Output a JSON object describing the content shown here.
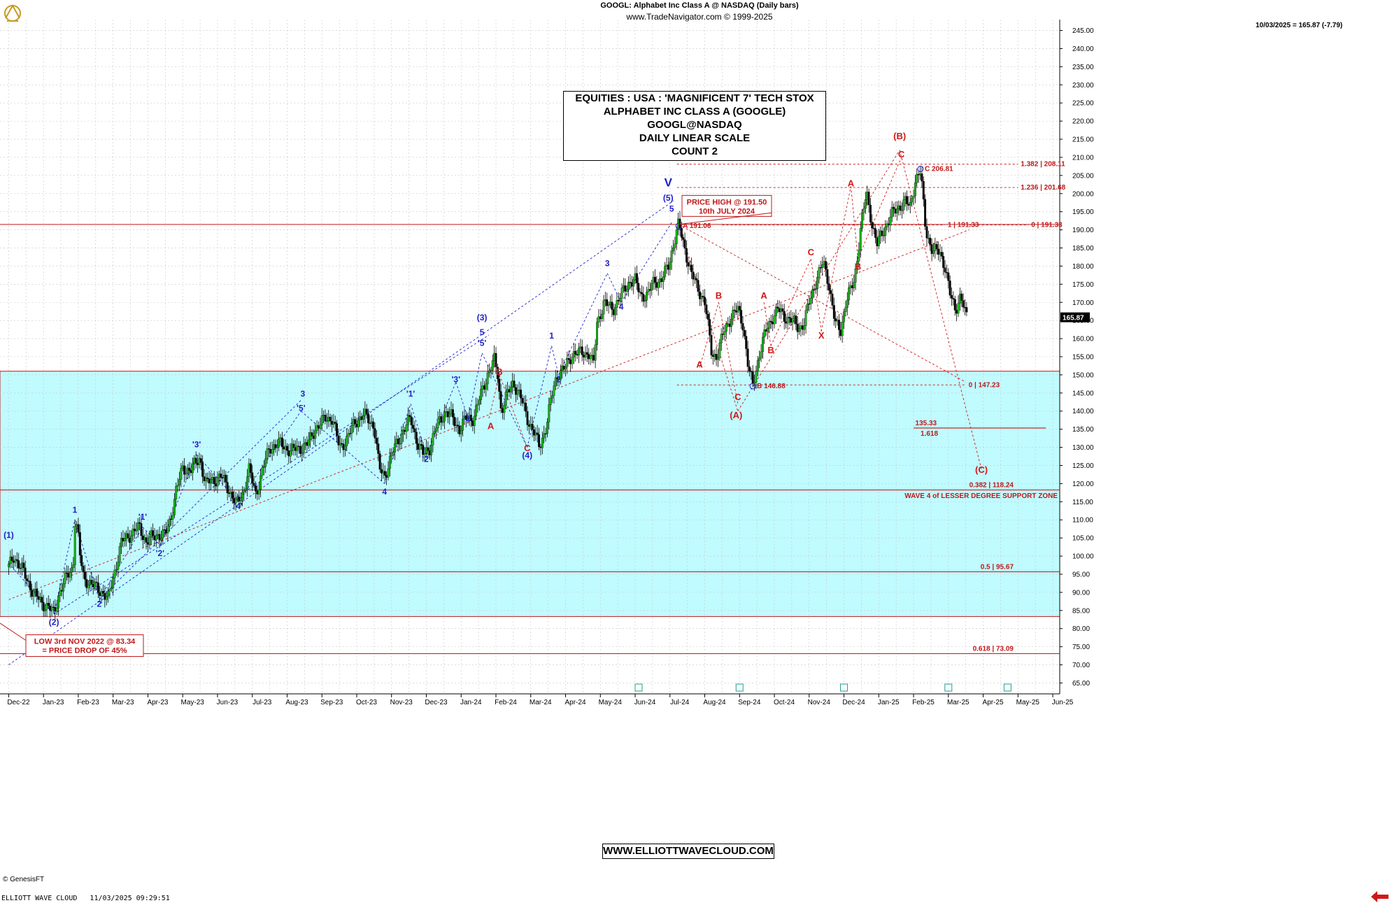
{
  "header": {
    "title": "GOOGL:  Alphabet Inc Class A @ NASDAQ  (Daily bars)",
    "subtitle": "www.TradeNavigator.com © 1999-2025",
    "last_readout": "10/03/2025 = 165.87 (-7.79)"
  },
  "info_box": {
    "lines": [
      "EQUITIES : USA : 'MAGNIFICENT 7' TECH STOX",
      "ALPHABET INC CLASS A (GOOGLE)",
      "GOOGL@NASDAQ",
      "DAILY LINEAR SCALE",
      "COUNT 2"
    ]
  },
  "website_label": "WWW.ELLIOTTWAVECLOUD.COM",
  "footer": "ELLIOTT WAVE CLOUD   11/03/2025 09:29:51",
  "source_mark": "© GenesisFT",
  "colors": {
    "support_zone": "#c0fbff",
    "wave_blue": "#1f1fc8",
    "wave_red": "#d01818",
    "candle_up": "#14b014",
    "candle_down": "#000000",
    "grid": "#c8c8c8"
  },
  "chart_data": {
    "type": "candlestick",
    "y_axis": {
      "min": 62,
      "max": 248,
      "step": 5,
      "position": "right",
      "unit": "price"
    },
    "x_axis": {
      "ticks": [
        "Dec-22",
        "Jan-23",
        "Feb-23",
        "Mar-23",
        "Apr-23",
        "May-23",
        "Jun-23",
        "Jul-23",
        "Aug-23",
        "Sep-23",
        "Oct-23",
        "Nov-23",
        "Dec-23",
        "Jan-24",
        "Feb-24",
        "Mar-24",
        "Apr-24",
        "May-24",
        "Jun-24",
        "Jul-24",
        "Aug-24",
        "Sep-24",
        "Oct-24",
        "Nov-24",
        "Dec-24",
        "Jan-25",
        "Feb-25",
        "Mar-25",
        "Apr-25",
        "May-25",
        "Jun-25"
      ],
      "start_month": 0,
      "end_month": 30
    },
    "grid": true,
    "last_price": "165.87",
    "price_path": [
      [
        0.0,
        97
      ],
      [
        0.15,
        100
      ],
      [
        0.4,
        96
      ],
      [
        0.7,
        90
      ],
      [
        0.95,
        87
      ],
      [
        1.15,
        86
      ],
      [
        1.3,
        84
      ],
      [
        1.45,
        90
      ],
      [
        1.65,
        94
      ],
      [
        1.85,
        97
      ],
      [
        1.9,
        110
      ],
      [
        1.98,
        107
      ],
      [
        2.05,
        100
      ],
      [
        2.15,
        94
      ],
      [
        2.4,
        92
      ],
      [
        2.7,
        90
      ],
      [
        2.85,
        88
      ],
      [
        3.0,
        94
      ],
      [
        3.25,
        104
      ],
      [
        3.5,
        106
      ],
      [
        3.75,
        108
      ],
      [
        3.95,
        104
      ],
      [
        4.1,
        105
      ],
      [
        4.3,
        106
      ],
      [
        4.5,
        106
      ],
      [
        4.65,
        110
      ],
      [
        4.8,
        118
      ],
      [
        5.0,
        124
      ],
      [
        5.25,
        124
      ],
      [
        5.5,
        127
      ],
      [
        5.65,
        120
      ],
      [
        5.9,
        121
      ],
      [
        6.1,
        122
      ],
      [
        6.35,
        118
      ],
      [
        6.55,
        114
      ],
      [
        6.75,
        118
      ],
      [
        6.9,
        124
      ],
      [
        7.1,
        117
      ],
      [
        7.3,
        124
      ],
      [
        7.5,
        130
      ],
      [
        7.8,
        131
      ],
      [
        8.1,
        129
      ],
      [
        8.4,
        130
      ],
      [
        8.6,
        131
      ],
      [
        8.8,
        135
      ],
      [
        9.1,
        138
      ],
      [
        9.3,
        138
      ],
      [
        9.5,
        130
      ],
      [
        9.7,
        132
      ],
      [
        9.95,
        137
      ],
      [
        10.2,
        139
      ],
      [
        10.5,
        136
      ],
      [
        10.65,
        124
      ],
      [
        10.8,
        122
      ],
      [
        11.0,
        128
      ],
      [
        11.3,
        134
      ],
      [
        11.55,
        138
      ],
      [
        11.75,
        131
      ],
      [
        11.9,
        128
      ],
      [
        12.1,
        130
      ],
      [
        12.3,
        136
      ],
      [
        12.55,
        140
      ],
      [
        12.75,
        138
      ],
      [
        12.95,
        135
      ],
      [
        13.15,
        138
      ],
      [
        13.35,
        138
      ],
      [
        13.55,
        144
      ],
      [
        13.75,
        150
      ],
      [
        13.95,
        154
      ],
      [
        14.05,
        150
      ],
      [
        14.15,
        140
      ],
      [
        14.3,
        144
      ],
      [
        14.5,
        148
      ],
      [
        14.7,
        144
      ],
      [
        14.9,
        138
      ],
      [
        15.1,
        134
      ],
      [
        15.25,
        130
      ],
      [
        15.45,
        136
      ],
      [
        15.6,
        144
      ],
      [
        15.75,
        150
      ],
      [
        16.0,
        152
      ],
      [
        16.2,
        156
      ],
      [
        16.45,
        156
      ],
      [
        16.7,
        156
      ],
      [
        16.8,
        152
      ],
      [
        16.9,
        164
      ],
      [
        17.1,
        170
      ],
      [
        17.35,
        168
      ],
      [
        17.6,
        172
      ],
      [
        17.85,
        176
      ],
      [
        18.0,
        176
      ],
      [
        18.15,
        172
      ],
      [
        18.35,
        172
      ],
      [
        18.55,
        176
      ],
      [
        18.75,
        176
      ],
      [
        18.95,
        180
      ],
      [
        19.1,
        186
      ],
      [
        19.25,
        191.5
      ],
      [
        19.4,
        186
      ],
      [
        19.6,
        178
      ],
      [
        19.8,
        174
      ],
      [
        20.0,
        170
      ],
      [
        20.2,
        156
      ],
      [
        20.35,
        155
      ],
      [
        20.55,
        162
      ],
      [
        20.75,
        166
      ],
      [
        20.95,
        168
      ],
      [
        21.1,
        164
      ],
      [
        21.25,
        152
      ],
      [
        21.38,
        147
      ],
      [
        21.55,
        155
      ],
      [
        21.75,
        162
      ],
      [
        21.95,
        166
      ],
      [
        22.1,
        168
      ],
      [
        22.3,
        166
      ],
      [
        22.5,
        165
      ],
      [
        22.7,
        163
      ],
      [
        22.85,
        164
      ],
      [
        23.0,
        170
      ],
      [
        23.2,
        176
      ],
      [
        23.4,
        181
      ],
      [
        23.55,
        176
      ],
      [
        23.75,
        164
      ],
      [
        23.9,
        162
      ],
      [
        24.05,
        170
      ],
      [
        24.3,
        176
      ],
      [
        24.5,
        192
      ],
      [
        24.65,
        200
      ],
      [
        24.8,
        192
      ],
      [
        24.95,
        186
      ],
      [
        25.15,
        190
      ],
      [
        25.35,
        194
      ],
      [
        25.55,
        196
      ],
      [
        25.75,
        198
      ],
      [
        25.9,
        196
      ],
      [
        26.05,
        204
      ],
      [
        26.2,
        206
      ],
      [
        26.35,
        190
      ],
      [
        26.55,
        184
      ],
      [
        26.75,
        184
      ],
      [
        26.9,
        180
      ],
      [
        27.05,
        172
      ],
      [
        27.2,
        168
      ],
      [
        27.35,
        172
      ],
      [
        27.5,
        166
      ]
    ],
    "support_zone": {
      "low": 83.34,
      "high": 151
    },
    "horizontal_lines": [
      {
        "price": 191.5,
        "label": ""
      },
      {
        "price": 118.24,
        "label": "0.382 | 118.24"
      },
      {
        "price": 95.67,
        "label": "0.5 | 95.67"
      },
      {
        "price": 73.09,
        "label": "0.618 | 73.09"
      },
      {
        "price": 135.33,
        "label": "135.33"
      }
    ],
    "fib_levels": [
      {
        "price": 208.11,
        "label": "1.382 | 208.11"
      },
      {
        "price": 201.68,
        "label": "1.236 | 201.68"
      },
      {
        "price": 191.33,
        "label": "1 | 191.33"
      },
      {
        "price": 191.33,
        "label": "0 | 191.33"
      },
      {
        "price": 147.23,
        "label": "0 | 147.23"
      }
    ],
    "annotations": [
      {
        "text": "PRICE HIGH @ 191.50",
        "month": 19.25,
        "price": 191.5,
        "sub": "10th JULY 2024"
      },
      {
        "text": "LOW 3rd NOV 2022 @ 83.34",
        "month": 0.0,
        "price": 83.34,
        "sub": "= PRICE DROP OF 45%"
      },
      {
        "text": "WAVE 4 of LESSER DEGREE SUPPORT ZONE"
      },
      {
        "text": "A 191.06"
      },
      {
        "text": "B 146.88"
      },
      {
        "text": "C 206.81"
      },
      {
        "text": "1.618"
      }
    ],
    "wave_labels_blue": [
      {
        "t": "(1)",
        "m": 0.0,
        "p": 105
      },
      {
        "t": "(2)",
        "m": 1.3,
        "p": 81
      },
      {
        "t": "1",
        "m": 1.9,
        "p": 112
      },
      {
        "t": "2",
        "m": 2.6,
        "p": 86
      },
      {
        "t": "'1'",
        "m": 3.85,
        "p": 110
      },
      {
        "t": "'2'",
        "m": 4.35,
        "p": 100
      },
      {
        "t": "'3'",
        "m": 5.4,
        "p": 130
      },
      {
        "t": "'4'",
        "m": 6.6,
        "p": 113
      },
      {
        "t": "'5'",
        "m": 8.4,
        "p": 140
      },
      {
        "t": "3",
        "m": 8.45,
        "p": 144
      },
      {
        "t": "4",
        "m": 10.8,
        "p": 117
      },
      {
        "t": "'1'",
        "m": 11.55,
        "p": 144
      },
      {
        "t": "'2'",
        "m": 12.0,
        "p": 126
      },
      {
        "t": "'3'",
        "m": 12.85,
        "p": 148
      },
      {
        "t": "'4'",
        "m": 13.2,
        "p": 137
      },
      {
        "t": "'5'",
        "m": 13.6,
        "p": 158
      },
      {
        "t": "5",
        "m": 13.6,
        "p": 161
      },
      {
        "t": "(3)",
        "m": 13.6,
        "p": 165
      },
      {
        "t": "(4)",
        "m": 14.9,
        "p": 127
      },
      {
        "t": "1",
        "m": 15.6,
        "p": 160
      },
      {
        "t": "2",
        "m": 15.8,
        "p": 148
      },
      {
        "t": "3",
        "m": 17.2,
        "p": 180
      },
      {
        "t": "4",
        "m": 17.6,
        "p": 168
      },
      {
        "t": "5",
        "m": 19.05,
        "p": 195
      },
      {
        "t": "(5)",
        "m": 18.95,
        "p": 198
      },
      {
        "t": "V",
        "m": 18.95,
        "p": 202
      }
    ],
    "wave_labels_red": [
      {
        "t": "A",
        "m": 13.85,
        "p": 135
      },
      {
        "t": "B",
        "m": 14.1,
        "p": 150
      },
      {
        "t": "C",
        "m": 14.9,
        "p": 129
      },
      {
        "t": "A",
        "m": 19.85,
        "p": 152
      },
      {
        "t": "B",
        "m": 20.4,
        "p": 171
      },
      {
        "t": "C",
        "m": 20.95,
        "p": 143
      },
      {
        "t": "(A)",
        "m": 20.9,
        "p": 138
      },
      {
        "t": "A",
        "m": 21.7,
        "p": 171
      },
      {
        "t": "B",
        "m": 21.9,
        "p": 156
      },
      {
        "t": "C",
        "m": 23.05,
        "p": 183
      },
      {
        "t": "X",
        "m": 23.35,
        "p": 160
      },
      {
        "t": "A",
        "m": 24.2,
        "p": 202
      },
      {
        "t": "B",
        "m": 24.4,
        "p": 179
      },
      {
        "t": "C",
        "m": 25.65,
        "p": 210
      },
      {
        "t": "(B)",
        "m": 25.6,
        "p": 215
      },
      {
        "t": "(C)",
        "m": 27.95,
        "p": 123
      }
    ]
  }
}
